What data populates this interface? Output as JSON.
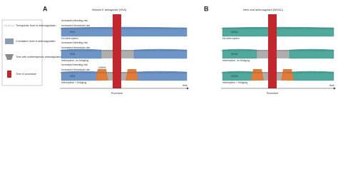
{
  "legend": [
    "Therapeutic level of anticoagulation",
    "Cumulative level of anticoagulation",
    "Time with subtherapeutic anticoagulation",
    "Time of procedure"
  ],
  "panels": [
    {
      "letter": "A",
      "title": "Vitamin K antagonist (VKA)",
      "drug": "VKA",
      "bridge": "LMWH",
      "risk_upper": "Increased bleeding risk",
      "risk_lower": "Increased thrombotic risk",
      "rows": [
        "No interruption",
        "Interruption, no bridging",
        "Interruption + bridging"
      ],
      "axis": "time",
      "procedure": "Procedure"
    },
    {
      "letter": "B",
      "title": "New oral anticoagulant (NOAC)",
      "drug": "NOAC",
      "rows": [
        "No interruption",
        "Interruption, no bridging",
        "Interruption + bridging"
      ],
      "axis": "time",
      "procedure": "Procedure"
    }
  ]
}
